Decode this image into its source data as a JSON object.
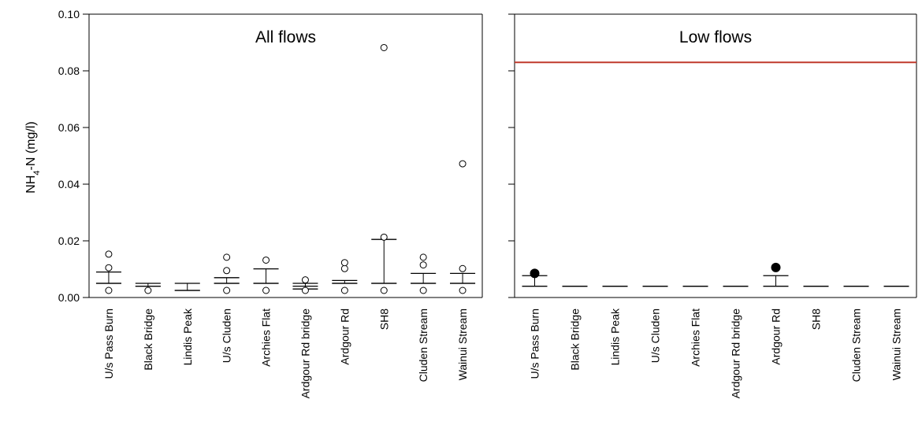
{
  "chart_data": {
    "type": "box",
    "ylabel_main": "NH",
    "ylabel_sub": "4",
    "ylabel_rest": "-N (mg/l)",
    "ylim": [
      0,
      0.1
    ],
    "yticks": [
      "0.00",
      "0.02",
      "0.04",
      "0.06",
      "0.08",
      "0.10"
    ],
    "reference_line": {
      "y": 0.083,
      "color": "#c0392b"
    },
    "panels": [
      {
        "title": "All flows",
        "categories": [
          "U/s Pass Burn",
          "Black Bridge",
          "Lindis Peak",
          "U/s Cluden",
          "Archies Flat",
          "Ardgour Rd bridge",
          "Ardgour Rd",
          "SH8",
          "Cluden Stream",
          "Wainui Stream"
        ],
        "stats": [
          {
            "low": 0.005,
            "med": 0.005,
            "high": 0.009,
            "outliers": [
              0.0025,
              0.0105,
              0.0153
            ]
          },
          {
            "low": 0.004,
            "med": 0.004,
            "high": 0.005,
            "outliers": [
              0.0025
            ]
          },
          {
            "low": 0.0025,
            "med": 0.0025,
            "high": 0.005,
            "outliers": []
          },
          {
            "low": 0.005,
            "med": 0.005,
            "high": 0.007,
            "outliers": [
              0.0025,
              0.0095,
              0.0142
            ]
          },
          {
            "low": 0.005,
            "med": 0.005,
            "high": 0.0101,
            "outliers": [
              0.0025,
              0.0132
            ]
          },
          {
            "low": 0.003,
            "med": 0.004,
            "high": 0.005,
            "outliers": [
              0.0025,
              0.0062
            ]
          },
          {
            "low": 0.005,
            "med": 0.005,
            "high": 0.006,
            "outliers": [
              0.0025,
              0.0102,
              0.0123
            ]
          },
          {
            "low": 0.005,
            "med": 0.005,
            "high": 0.0205,
            "outliers": [
              0.0025,
              0.0213,
              0.0882
            ]
          },
          {
            "low": 0.005,
            "med": 0.005,
            "high": 0.0085,
            "outliers": [
              0.0025,
              0.0115,
              0.0142
            ]
          },
          {
            "low": 0.005,
            "med": 0.005,
            "high": 0.0085,
            "outliers": [
              0.0025,
              0.0102,
              0.0472
            ]
          }
        ]
      },
      {
        "title": "Low flows",
        "categories": [
          "U/s Pass Burn",
          "Black Bridge",
          "Lindis Peak",
          "U/s Cluden",
          "Archies Flat",
          "Ardgour Rd bridge",
          "Ardgour Rd",
          "SH8",
          "Cluden Stream",
          "Wainui Stream"
        ],
        "stats": [
          {
            "low": 0.004,
            "med": 0.004,
            "high": 0.0077,
            "points": [
              0.0085
            ]
          },
          {
            "low": 0.004,
            "med": 0.004,
            "high": 0.004,
            "points": []
          },
          {
            "low": 0.004,
            "med": 0.004,
            "high": 0.004,
            "points": []
          },
          {
            "low": 0.004,
            "med": 0.004,
            "high": 0.004,
            "points": []
          },
          {
            "low": 0.004,
            "med": 0.004,
            "high": 0.004,
            "points": []
          },
          {
            "low": 0.004,
            "med": 0.004,
            "high": 0.004,
            "points": []
          },
          {
            "low": 0.004,
            "med": 0.004,
            "high": 0.0077,
            "points": [
              0.0106
            ]
          },
          {
            "low": 0.004,
            "med": 0.004,
            "high": 0.004,
            "points": []
          },
          {
            "low": 0.004,
            "med": 0.004,
            "high": 0.004,
            "points": []
          },
          {
            "low": 0.004,
            "med": 0.004,
            "high": 0.004,
            "points": []
          }
        ]
      }
    ]
  }
}
